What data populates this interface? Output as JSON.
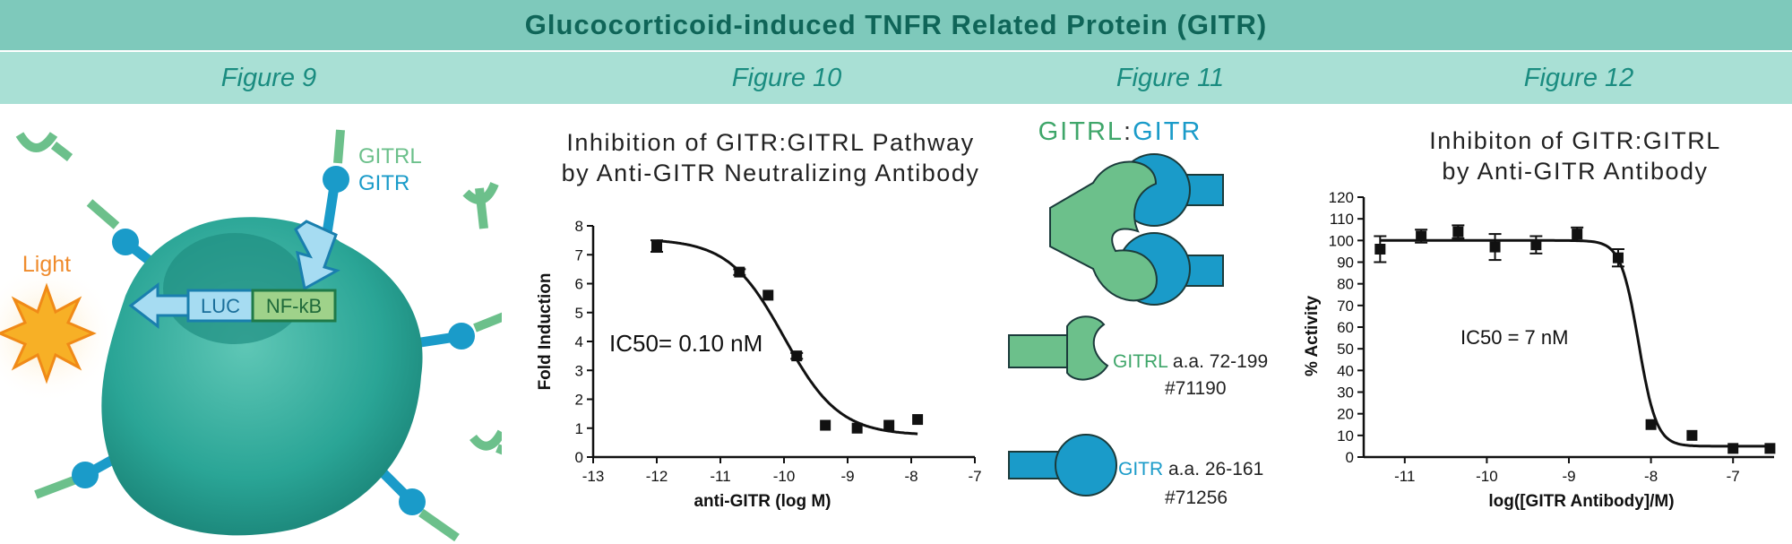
{
  "header": {
    "title": "Glucocorticoid-induced TNFR Related Protein (GITR)"
  },
  "figure_labels": [
    "Figure 9",
    "Figure 10",
    "Figure 11",
    "Figure 12"
  ],
  "fig9": {
    "ligand_label": "GITRL",
    "receptor_label": "GITR",
    "light_label": "Light",
    "luc_label": "LUC",
    "nfkb_label": "NF-kB",
    "colors": {
      "ligand": "#6cc08b",
      "receptor": "#1a9bc9",
      "cell": "#2aa596",
      "light": "#f7a81b"
    }
  },
  "fig10": {
    "title_line1": "Inhibition of GITR:GITRL Pathway",
    "title_line2": "by Anti-GITR Neutralizing Antibody",
    "annotation": "IC50= 0.10 nM"
  },
  "fig11": {
    "title_ligand": "GITRL",
    "title_sep": ":",
    "title_receptor": "GITR",
    "ligand_name": "GITRL",
    "ligand_aa": " a.a. 72-199",
    "ligand_cat": "#71190",
    "receptor_name": "GITR",
    "receptor_aa": " a.a. 26-161",
    "receptor_cat": "#71256",
    "colors": {
      "ligand": "#6cc08b",
      "receptor": "#1a9bc9"
    }
  },
  "fig12": {
    "title_line1": "Inhibiton of GITR:GITRL",
    "title_line2": "by Anti-GITR Antibody",
    "annotation": "IC50 = 7 nM"
  },
  "chart_data": [
    {
      "type": "scatter",
      "xlabel": "anti-GITR (log M)",
      "ylabel": "Fold Induction",
      "xlim": [
        -13,
        -7
      ],
      "ylim": [
        0,
        8
      ],
      "xticks": [
        -13,
        -12,
        -11,
        -10,
        -9,
        -8,
        -7
      ],
      "yticks": [
        0,
        1,
        2,
        3,
        4,
        5,
        6,
        7,
        8
      ],
      "points": [
        {
          "x": -12.0,
          "y": 7.3,
          "err": 0.2
        },
        {
          "x": -10.7,
          "y": 6.4,
          "err": 0.1
        },
        {
          "x": -10.25,
          "y": 5.6,
          "err": 0
        },
        {
          "x": -9.8,
          "y": 3.5,
          "err": 0.1
        },
        {
          "x": -9.35,
          "y": 1.1,
          "err": 0
        },
        {
          "x": -8.85,
          "y": 1.0,
          "err": 0
        },
        {
          "x": -8.35,
          "y": 1.1,
          "err": 0
        },
        {
          "x": -7.9,
          "y": 1.3,
          "err": 0
        }
      ],
      "fit": {
        "bottom": 0.75,
        "top": 7.55,
        "log_ic50": -10.0,
        "hill": 1.0
      }
    },
    {
      "type": "scatter",
      "xlabel": "log([GITR Antibody]/M)",
      "ylabel": "% Activity",
      "xlim": [
        -11.5,
        -6.5
      ],
      "ylim": [
        0,
        120
      ],
      "xticks": [
        -11,
        -10,
        -9,
        -8,
        -7
      ],
      "yticks": [
        0,
        10,
        20,
        30,
        40,
        50,
        60,
        70,
        80,
        90,
        100,
        110,
        120
      ],
      "points": [
        {
          "x": -11.3,
          "y": 96,
          "err": 6
        },
        {
          "x": -10.8,
          "y": 102,
          "err": 3
        },
        {
          "x": -10.35,
          "y": 104,
          "err": 3
        },
        {
          "x": -9.9,
          "y": 97,
          "err": 6
        },
        {
          "x": -9.4,
          "y": 98,
          "err": 4
        },
        {
          "x": -8.9,
          "y": 103,
          "err": 3
        },
        {
          "x": -8.4,
          "y": 92,
          "err": 4
        },
        {
          "x": -8.0,
          "y": 15,
          "err": 0
        },
        {
          "x": -7.5,
          "y": 10,
          "err": 0
        },
        {
          "x": -7.0,
          "y": 4,
          "err": 0
        },
        {
          "x": -6.55,
          "y": 4,
          "err": 0
        }
      ],
      "fit": {
        "bottom": 5,
        "top": 100,
        "log_ic50": -8.15,
        "hill": 4.0
      }
    }
  ]
}
